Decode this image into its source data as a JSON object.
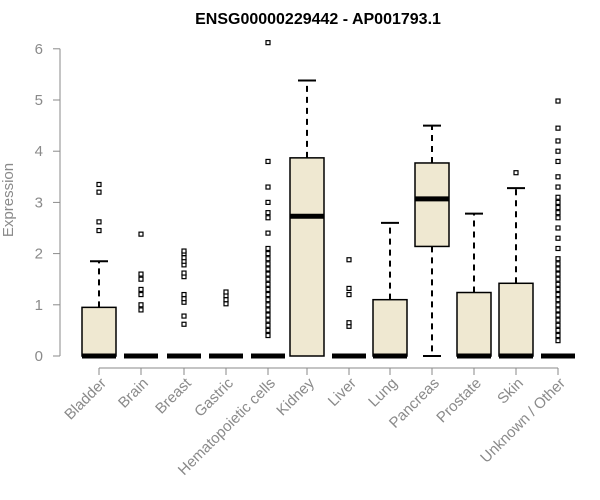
{
  "chart_data": {
    "type": "boxplot",
    "title": "ENSG00000229442 - AP001793.1",
    "xlabel": "",
    "ylabel": "Expression",
    "ylim": [
      0,
      6.25
    ],
    "yticks": [
      0,
      1,
      2,
      3,
      4,
      5,
      6
    ],
    "categories": [
      "Bladder",
      "Brain",
      "Breast",
      "Gastric",
      "Hematopoietic cells",
      "Kidney",
      "Liver",
      "Lung",
      "Pancreas",
      "Prostate",
      "Skin",
      "Unknown / Other"
    ],
    "boxes": [
      {
        "q1": 0,
        "median": 0,
        "q3": 0.95,
        "whisker_low": 0,
        "whisker_high": 1.85,
        "outliers": [
          2.45,
          2.62,
          3.2,
          3.35
        ]
      },
      {
        "q1": 0,
        "median": 0,
        "q3": 0,
        "whisker_low": 0,
        "whisker_high": 0,
        "outliers": [
          0.9,
          1.0,
          1.2,
          1.3,
          1.5,
          1.6,
          2.38
        ]
      },
      {
        "q1": 0,
        "median": 0,
        "q3": 0,
        "whisker_low": 0,
        "whisker_high": 0,
        "outliers": [
          0.62,
          0.78,
          1.05,
          1.12,
          1.2,
          1.55,
          1.62,
          1.78,
          1.85,
          1.92,
          2.0,
          2.05
        ]
      },
      {
        "q1": 0,
        "median": 0,
        "q3": 0,
        "whisker_low": 0,
        "whisker_high": 0,
        "outliers": [
          1.02,
          1.1,
          1.18,
          1.25
        ]
      },
      {
        "q1": 0,
        "median": 0,
        "q3": 0,
        "whisker_low": 0,
        "whisker_high": 0,
        "outliers": [
          0.4,
          0.5,
          0.6,
          0.7,
          0.8,
          0.9,
          1.0,
          1.1,
          1.2,
          1.3,
          1.4,
          1.5,
          1.6,
          1.7,
          1.8,
          1.9,
          2.0,
          2.1,
          2.4,
          2.7,
          2.8,
          3.0,
          3.3,
          3.8,
          6.12
        ]
      },
      {
        "q1": 0,
        "median": 2.73,
        "q3": 3.87,
        "whisker_low": 0,
        "whisker_high": 5.38,
        "outliers": []
      },
      {
        "q1": 0,
        "median": 0,
        "q3": 0,
        "whisker_low": 0,
        "whisker_high": 0,
        "outliers": [
          0.58,
          0.65,
          1.2,
          1.32,
          1.88
        ]
      },
      {
        "q1": 0,
        "median": 0,
        "q3": 1.1,
        "whisker_low": 0,
        "whisker_high": 2.6,
        "outliers": []
      },
      {
        "q1": 2.14,
        "median": 3.07,
        "q3": 3.77,
        "whisker_low": 0,
        "whisker_high": 4.5,
        "outliers": []
      },
      {
        "q1": 0,
        "median": 0,
        "q3": 1.24,
        "whisker_low": 0,
        "whisker_high": 2.78,
        "outliers": []
      },
      {
        "q1": 0,
        "median": 0,
        "q3": 1.42,
        "whisker_low": 0,
        "whisker_high": 3.28,
        "outliers": [
          3.58
        ]
      },
      {
        "q1": 0,
        "median": 0,
        "q3": 0,
        "whisker_low": 0,
        "whisker_high": 0,
        "outliers": [
          0.3,
          0.4,
          0.5,
          0.6,
          0.7,
          0.8,
          0.9,
          1.0,
          1.1,
          1.2,
          1.3,
          1.4,
          1.5,
          1.6,
          1.7,
          1.8,
          1.9,
          2.1,
          2.3,
          2.5,
          2.7,
          2.8,
          2.9,
          3.0,
          3.1,
          3.3,
          3.5,
          3.8,
          4.0,
          4.2,
          4.45,
          4.98
        ]
      }
    ],
    "colors": {
      "box_fill": "#efe8d1",
      "box_stroke": "#000000",
      "axis_text": "#8a8a8a",
      "title": "#000000"
    },
    "grid": false,
    "legend": "none"
  }
}
